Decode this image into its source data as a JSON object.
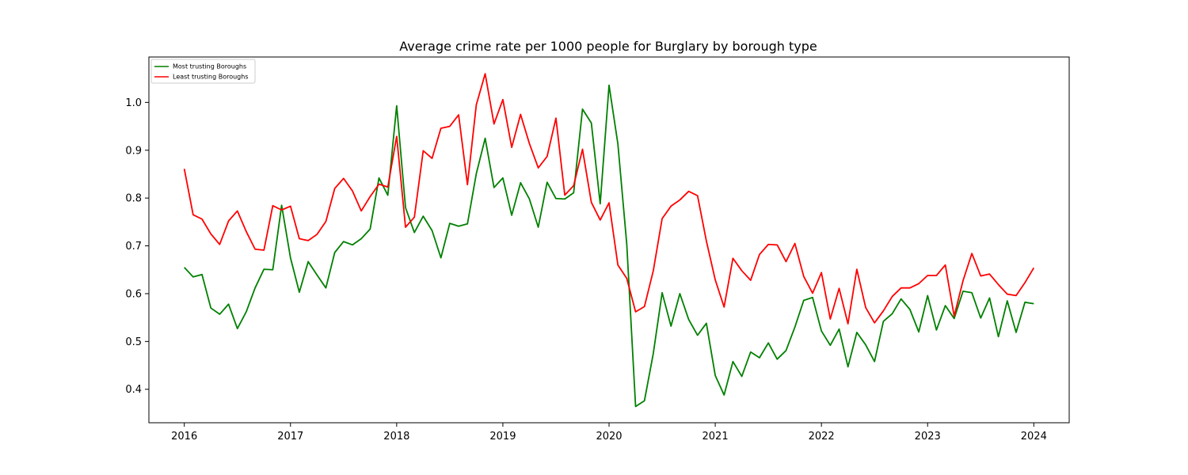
{
  "chart_data": {
    "type": "line",
    "title": "Average crime rate per 1000 people for Burglary by borough type",
    "xlabel": "",
    "ylabel": "",
    "x_start": "2016-01",
    "x_ticks": [
      "2016",
      "2017",
      "2018",
      "2019",
      "2020",
      "2021",
      "2022",
      "2023",
      "2024"
    ],
    "y_ticks": [
      "0.4",
      "0.5",
      "0.6",
      "0.7",
      "0.8",
      "0.9",
      "1.0"
    ],
    "xlim": [
      "2015-09",
      "2024-05"
    ],
    "ylim": [
      0.33,
      1.095
    ],
    "grid": false,
    "legend_position": "top-left",
    "series": [
      {
        "name": "Most trusting Boroughs",
        "color": "#008000",
        "values": [
          0.655,
          0.635,
          0.64,
          0.57,
          0.557,
          0.578,
          0.527,
          0.562,
          0.612,
          0.651,
          0.65,
          0.785,
          0.675,
          0.603,
          0.667,
          0.639,
          0.612,
          0.686,
          0.709,
          0.702,
          0.715,
          0.735,
          0.842,
          0.806,
          0.993,
          0.78,
          0.728,
          0.762,
          0.732,
          0.675,
          0.747,
          0.741,
          0.746,
          0.851,
          0.925,
          0.822,
          0.842,
          0.764,
          0.832,
          0.798,
          0.739,
          0.833,
          0.799,
          0.798,
          0.811,
          0.986,
          0.957,
          0.788,
          1.036,
          0.913,
          0.704,
          0.364,
          0.376,
          0.475,
          0.602,
          0.532,
          0.6,
          0.546,
          0.513,
          0.538,
          0.429,
          0.388,
          0.458,
          0.427,
          0.478,
          0.466,
          0.497,
          0.463,
          0.481,
          0.53,
          0.586,
          0.592,
          0.522,
          0.492,
          0.526,
          0.447,
          0.519,
          0.493,
          0.458,
          0.542,
          0.558,
          0.589,
          0.567,
          0.52,
          0.596,
          0.524,
          0.575,
          0.548,
          0.605,
          0.602,
          0.549,
          0.591,
          0.51,
          0.585,
          0.519,
          0.582,
          0.579
        ]
      },
      {
        "name": "Least trusting Boroughs",
        "color": "#ff0000",
        "values": [
          0.861,
          0.765,
          0.756,
          0.725,
          0.703,
          0.752,
          0.773,
          0.73,
          0.693,
          0.691,
          0.784,
          0.775,
          0.783,
          0.715,
          0.711,
          0.724,
          0.751,
          0.82,
          0.841,
          0.815,
          0.773,
          0.803,
          0.829,
          0.823,
          0.929,
          0.739,
          0.76,
          0.899,
          0.883,
          0.946,
          0.95,
          0.974,
          0.828,
          0.995,
          1.06,
          0.955,
          1.006,
          0.906,
          0.975,
          0.914,
          0.863,
          0.887,
          0.967,
          0.806,
          0.826,
          0.902,
          0.791,
          0.754,
          0.79,
          0.66,
          0.632,
          0.562,
          0.573,
          0.648,
          0.757,
          0.783,
          0.796,
          0.814,
          0.805,
          0.71,
          0.629,
          0.572,
          0.674,
          0.648,
          0.628,
          0.682,
          0.703,
          0.702,
          0.667,
          0.705,
          0.636,
          0.601,
          0.644,
          0.547,
          0.611,
          0.537,
          0.651,
          0.571,
          0.539,
          0.564,
          0.594,
          0.612,
          0.612,
          0.621,
          0.638,
          0.638,
          0.66,
          0.553,
          0.627,
          0.684,
          0.637,
          0.641,
          0.619,
          0.599,
          0.596,
          0.623,
          0.654
        ]
      }
    ]
  }
}
